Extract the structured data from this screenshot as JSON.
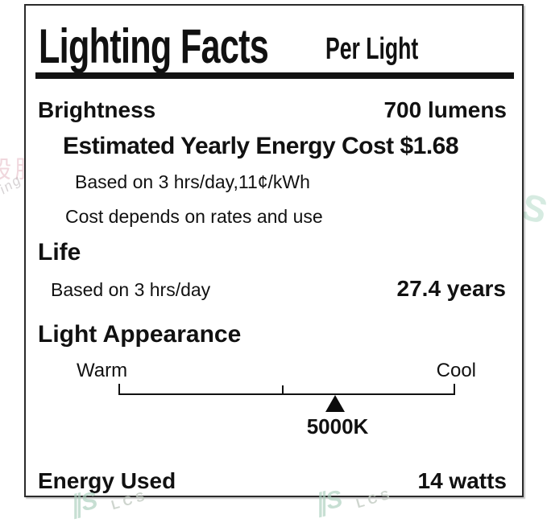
{
  "label": {
    "title": "Lighting Facts",
    "title_suffix": "Per Light",
    "brightness": {
      "name": "Brightness",
      "value": "700 lumens"
    },
    "energy_cost": {
      "headline": "Estimated Yearly Energy Cost $1.68",
      "basis": "Based on 3 hrs/day,11¢/kWh",
      "note": "Cost depends on rates and use"
    },
    "life": {
      "name": "Life",
      "basis": "Based on 3 hrs/day",
      "value": "27.4 years"
    },
    "light_appearance": {
      "name": "Light Appearance",
      "scale_left": "Warm",
      "scale_right": "Cool",
      "marker_value": "5000K"
    },
    "energy_used": {
      "name": "Energy Used",
      "value": "14 watts"
    }
  },
  "watermarks": {
    "cn_text": "般股",
    "ing_text": "ing t",
    "logo_mark": "∥S",
    "logo_text": "S",
    "lcs_text": "LCS"
  },
  "colors": {
    "text": "#111111",
    "border": "#2b2b2b",
    "marker": "#0c0c0c",
    "watermark_green": "#aacfbd",
    "watermark_gray": "#c2cbc2",
    "watermark_pink": "#dca2af"
  }
}
